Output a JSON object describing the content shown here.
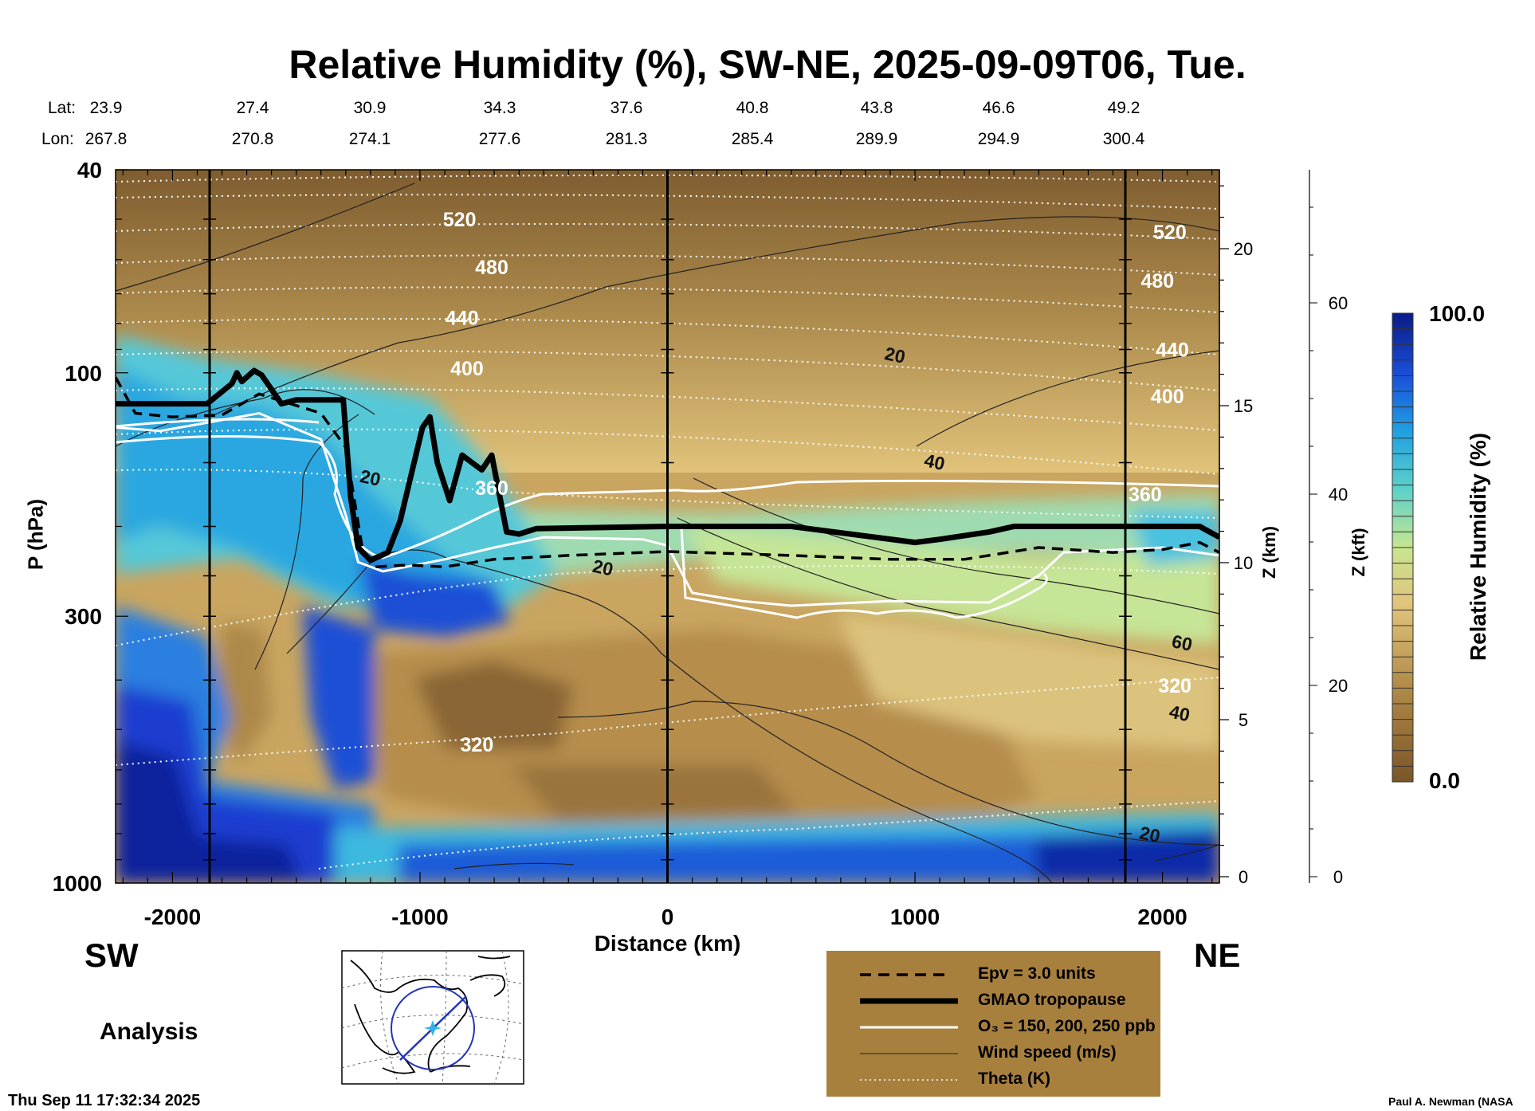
{
  "title": "Relative Humidity (%), SW-NE, 2025-09-09T06, Tue.",
  "lat_label": "Lat:",
  "lon_label": "Lon:",
  "lat": [
    "23.9",
    "27.4",
    "30.9",
    "34.3",
    "37.6",
    "40.8",
    "43.8",
    "46.6",
    "49.2"
  ],
  "lon": [
    "267.8",
    "270.8",
    "274.1",
    "277.6",
    "281.3",
    "285.4",
    "289.9",
    "294.9",
    "300.4"
  ],
  "y_label": "P (hPa)",
  "x_label": "Distance (km)",
  "z_km_label": "Z (km)",
  "z_kft_label": "Z (kft)",
  "colorbar_label": "Relative Humidity (%)",
  "colorbar_max": "100.0",
  "colorbar_min": "0.0",
  "sw_label": "SW",
  "ne_label": "NE",
  "analysis_label": "Analysis",
  "timestamp": "Thu Sep 11 17:32:34 2025",
  "credit": "Paul A. Newman (NASA",
  "legend": {
    "epv": "Epv = 3.0 units",
    "tropopause": "GMAO tropopause",
    "ozone": "O₃ = 150, 200, 250 ppb",
    "wind": "Wind speed (m/s)",
    "theta": "Theta (K)"
  },
  "colors": {
    "dry": "#8a6535",
    "mid": "#d6b26a",
    "moist_green": "#b8e39a",
    "moist_cyan": "#34c4dc",
    "wet_blue": "#1f5fd6",
    "saturated": "#0d1e9c",
    "legend_bg": "#a8803d"
  },
  "chart_data": {
    "type": "heatmap",
    "x_axis": {
      "label": "Distance (km)",
      "ticks": [
        -2000,
        -1000,
        0,
        1000,
        2000
      ],
      "range": [
        -2230,
        2230
      ]
    },
    "y_axis": {
      "label": "P (hPa)",
      "scale": "log",
      "ticks": [
        40,
        100,
        300,
        1000
      ],
      "range": [
        1000,
        40
      ]
    },
    "z_km_ticks": [
      0,
      5,
      10,
      15,
      20
    ],
    "z_kft_ticks": [
      0,
      20,
      40,
      60
    ],
    "vertical_lines_km": [
      -1850,
      0,
      1850
    ],
    "theta_labels": [
      {
        "x": -840,
        "p": 50,
        "text": "520"
      },
      {
        "x": -710,
        "p": 62,
        "text": "480"
      },
      {
        "x": -830,
        "p": 78,
        "text": "440"
      },
      {
        "x": -810,
        "p": 98,
        "text": "400"
      },
      {
        "x": -710,
        "p": 168,
        "text": "360"
      },
      {
        "x": -770,
        "p": 535,
        "text": "320"
      },
      {
        "x": 2030,
        "p": 53,
        "text": "520"
      },
      {
        "x": 1980,
        "p": 66,
        "text": "480"
      },
      {
        "x": 2040,
        "p": 90,
        "text": "440"
      },
      {
        "x": 2020,
        "p": 111,
        "text": "400"
      },
      {
        "x": 1930,
        "p": 173,
        "text": "360"
      },
      {
        "x": 2050,
        "p": 410,
        "text": "320"
      }
    ],
    "wind_labels": [
      {
        "x": 920,
        "p": 92,
        "text": "20"
      },
      {
        "x": 1080,
        "p": 149,
        "text": "40"
      },
      {
        "x": -1200,
        "p": 160,
        "text": "20"
      },
      {
        "x": -260,
        "p": 240,
        "text": "20"
      },
      {
        "x": 2080,
        "p": 337,
        "text": "60"
      },
      {
        "x": 2070,
        "p": 463,
        "text": "40"
      },
      {
        "x": 1950,
        "p": 800,
        "text": "20"
      }
    ],
    "tropopause": [
      [
        -2230,
        115
      ],
      [
        -1860,
        115
      ],
      [
        -1760,
        105
      ],
      [
        -1740,
        100
      ],
      [
        -1720,
        104
      ],
      [
        -1670,
        99
      ],
      [
        -1640,
        101
      ],
      [
        -1560,
        115
      ],
      [
        -1500,
        113
      ],
      [
        -1310,
        113
      ],
      [
        -1280,
        175
      ],
      [
        -1250,
        220
      ],
      [
        -1200,
        233
      ],
      [
        -1130,
        225
      ],
      [
        -1080,
        195
      ],
      [
        -990,
        128
      ],
      [
        -960,
        122
      ],
      [
        -930,
        150
      ],
      [
        -880,
        178
      ],
      [
        -830,
        145
      ],
      [
        -790,
        150
      ],
      [
        -750,
        155
      ],
      [
        -710,
        145
      ],
      [
        -650,
        205
      ],
      [
        -600,
        207
      ],
      [
        -530,
        202
      ],
      [
        0,
        200
      ],
      [
        500,
        200
      ],
      [
        1000,
        215
      ],
      [
        1100,
        212
      ],
      [
        1300,
        205
      ],
      [
        1400,
        200
      ],
      [
        2000,
        200
      ],
      [
        2150,
        200
      ],
      [
        2230,
        210
      ]
    ],
    "epv_line": [
      [
        -2230,
        102
      ],
      [
        -2150,
        120
      ],
      [
        -2000,
        122
      ],
      [
        -1800,
        121
      ],
      [
        -1650,
        110
      ],
      [
        -1400,
        120
      ],
      [
        -1300,
        140
      ],
      [
        -1230,
        225
      ],
      [
        -1180,
        240
      ],
      [
        -1050,
        238
      ],
      [
        -900,
        240
      ],
      [
        -700,
        232
      ],
      [
        -400,
        228
      ],
      [
        0,
        224
      ],
      [
        500,
        228
      ],
      [
        900,
        232
      ],
      [
        1200,
        232
      ],
      [
        1500,
        220
      ],
      [
        1800,
        225
      ],
      [
        2000,
        222
      ],
      [
        2150,
        215
      ],
      [
        2230,
        225
      ]
    ],
    "ozone_contour": [
      [
        -2230,
        128
      ],
      [
        -2050,
        130
      ],
      [
        -1850,
        125
      ],
      [
        -1650,
        120
      ],
      [
        -1400,
        135
      ],
      [
        -1300,
        190
      ],
      [
        -1250,
        235
      ],
      [
        -1150,
        245
      ],
      [
        -900,
        232
      ],
      [
        -700,
        220
      ],
      [
        -500,
        210
      ],
      [
        -100,
        212
      ],
      [
        0,
        218
      ],
      [
        100,
        270
      ],
      [
        300,
        280
      ],
      [
        500,
        286
      ],
      [
        900,
        280
      ],
      [
        1300,
        282
      ],
      [
        1500,
        250
      ],
      [
        1600,
        225
      ],
      [
        2000,
        220
      ],
      [
        2230,
        228
      ]
    ]
  }
}
